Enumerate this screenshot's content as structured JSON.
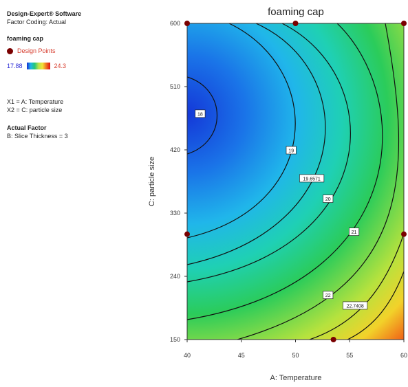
{
  "sidebar": {
    "software": "Design-Expert® Software",
    "coding": "Factor Coding: Actual",
    "response": "foaming cap",
    "design_points": "Design Points",
    "range_low": "17.88",
    "range_high": "24.3",
    "x1": "X1 = A: Temperature",
    "x2": "X2 = C: particle size",
    "actual_factor_title": "Actual Factor",
    "actual_factor": "B: Slice Thickness = 3"
  },
  "chart_data": {
    "type": "contour",
    "title": "foaming cap",
    "xlabel": "A: Temperature",
    "ylabel": "C: particle size",
    "xlim": [
      40,
      60
    ],
    "ylim": [
      150,
      600
    ],
    "xticks": [
      "40",
      "45",
      "50",
      "55",
      "60"
    ],
    "yticks": [
      "150",
      "240",
      "330",
      "420",
      "510",
      "600"
    ],
    "design_points": [
      [
        40,
        600
      ],
      [
        50,
        600
      ],
      [
        60,
        600
      ],
      [
        40,
        300
      ],
      [
        60,
        300
      ],
      [
        53.5,
        150
      ]
    ],
    "contour_labels": [
      {
        "text": "18",
        "x": 41.2,
        "y": 471
      },
      {
        "text": "19",
        "x": 49.6,
        "y": 419
      },
      {
        "text": "19.6571",
        "x": 51.5,
        "y": 379
      },
      {
        "text": "20",
        "x": 53,
        "y": 350
      },
      {
        "text": "21",
        "x": 55.4,
        "y": 303
      },
      {
        "text": "22",
        "x": 53,
        "y": 213
      },
      {
        "text": "22.7408",
        "x": 55.5,
        "y": 198
      }
    ],
    "colors": {
      "low": "#1a2bd6",
      "high": "#e01010"
    }
  }
}
